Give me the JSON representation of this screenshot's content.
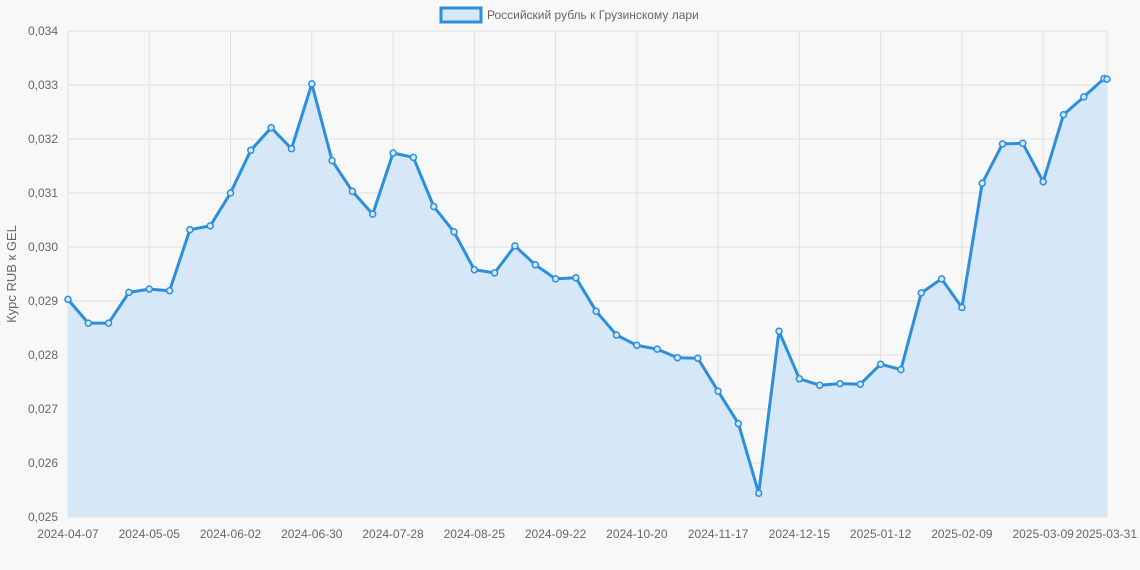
{
  "chart_data": {
    "type": "area",
    "title": "",
    "xlabel": "",
    "ylabel": "Курс RUB к GEL",
    "ylim": [
      0.025,
      0.034
    ],
    "y_ticks": [
      "0,025",
      "0,026",
      "0,027",
      "0,028",
      "0,029",
      "0,030",
      "0,031",
      "0,032",
      "0,033",
      "0,034"
    ],
    "x_ticks": [
      "2024-04-07",
      "2024-05-05",
      "2024-06-02",
      "2024-06-30",
      "2024-07-28",
      "2024-08-25",
      "2024-09-22",
      "2024-10-20",
      "2024-11-17",
      "2024-12-15",
      "2025-01-12",
      "2025-02-09",
      "2025-03-09",
      "2025-03-31"
    ],
    "grid": true,
    "legend_position": "top",
    "colors": {
      "line": "#2c8fdd",
      "fill": "#d6e7f7",
      "grid": "#e1e1e1",
      "background": "#f8f8f8"
    },
    "series": [
      {
        "name": "Российский рубль к Грузинскому лари",
        "x": [
          "2024-04-07",
          "2024-04-14",
          "2024-04-21",
          "2024-04-28",
          "2024-05-05",
          "2024-05-12",
          "2024-05-19",
          "2024-05-26",
          "2024-06-02",
          "2024-06-09",
          "2024-06-16",
          "2024-06-23",
          "2024-06-30",
          "2024-07-07",
          "2024-07-14",
          "2024-07-21",
          "2024-07-28",
          "2024-08-04",
          "2024-08-11",
          "2024-08-18",
          "2024-08-25",
          "2024-09-01",
          "2024-09-08",
          "2024-09-15",
          "2024-09-22",
          "2024-09-29",
          "2024-10-06",
          "2024-10-13",
          "2024-10-20",
          "2024-10-27",
          "2024-11-03",
          "2024-11-10",
          "2024-11-17",
          "2024-11-24",
          "2024-12-01",
          "2024-12-08",
          "2024-12-15",
          "2024-12-22",
          "2024-12-29",
          "2025-01-05",
          "2025-01-12",
          "2025-01-19",
          "2025-01-26",
          "2025-02-02",
          "2025-02-09",
          "2025-02-16",
          "2025-02-23",
          "2025-03-02",
          "2025-03-09",
          "2025-03-16",
          "2025-03-23",
          "2025-03-30",
          "2025-03-31"
        ],
        "values": [
          0.02903,
          0.02859,
          0.02859,
          0.02916,
          0.02922,
          0.02919,
          0.03032,
          0.03039,
          0.031,
          0.03179,
          0.03221,
          0.03182,
          0.03302,
          0.0316,
          0.03103,
          0.03061,
          0.03174,
          0.03166,
          0.03075,
          0.03028,
          0.02958,
          0.02952,
          0.03002,
          0.02967,
          0.02941,
          0.02943,
          0.02881,
          0.02837,
          0.02818,
          0.02811,
          0.02795,
          0.02794,
          0.02733,
          0.02673,
          0.02544,
          0.02844,
          0.02756,
          0.02744,
          0.02747,
          0.02746,
          0.02783,
          0.02773,
          0.02915,
          0.02941,
          0.02888,
          0.03118,
          0.03191,
          0.03192,
          0.03121,
          0.03245,
          0.03278,
          0.03312,
          0.03311
        ]
      }
    ]
  }
}
